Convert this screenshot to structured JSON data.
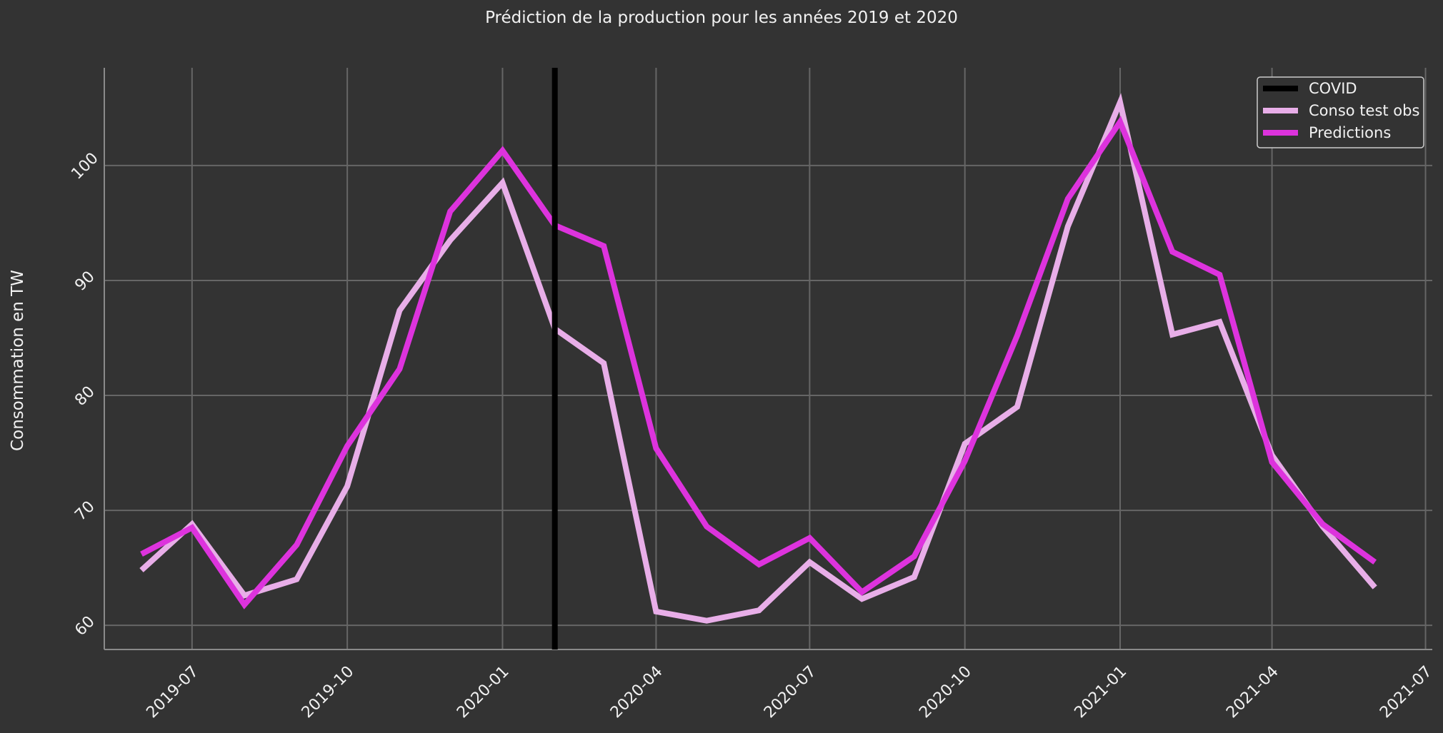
{
  "chart_data": {
    "type": "line",
    "title": "Prédiction de la production pour les années 2019 et 2020",
    "xlabel": "",
    "ylabel": "Consommation en TW",
    "x_tick_labels": [
      "2019-07",
      "2019-10",
      "2020-01",
      "2020-04",
      "2020-07",
      "2020-10",
      "2021-01",
      "2021-04",
      "2021-07"
    ],
    "y_ticks": [
      60,
      70,
      80,
      90,
      100
    ],
    "ylim": [
      57.9,
      108.5
    ],
    "xlim": [
      "2019-05-10",
      "2021-07-05"
    ],
    "grid": true,
    "legend_position": "top-right",
    "x": [
      "2019-06-01",
      "2019-07-01",
      "2019-08-01",
      "2019-09-01",
      "2019-10-01",
      "2019-11-01",
      "2019-12-01",
      "2020-01-01",
      "2020-02-01",
      "2020-03-01",
      "2020-04-01",
      "2020-05-01",
      "2020-06-01",
      "2020-07-01",
      "2020-08-01",
      "2020-09-01",
      "2020-10-01",
      "2020-11-01",
      "2020-12-01",
      "2021-01-01",
      "2021-02-01",
      "2021-03-01",
      "2021-04-01",
      "2021-05-01",
      "2021-06-01"
    ],
    "vline": {
      "name": "COVID",
      "x": "2020-02-01",
      "color": "#000000"
    },
    "series": [
      {
        "name": "Conso test obs",
        "color": "#e8aee8",
        "values": [
          64.8,
          68.8,
          62.6,
          64.0,
          72.1,
          87.4,
          93.5,
          98.5,
          85.8,
          82.8,
          61.2,
          60.4,
          61.3,
          65.5,
          62.3,
          64.2,
          75.8,
          79.0,
          94.7,
          105.5,
          85.3,
          86.4,
          74.8,
          68.6,
          63.3
        ]
      },
      {
        "name": "Predictions",
        "color": "#dd33dd",
        "values": [
          66.2,
          68.5,
          61.8,
          67.0,
          75.6,
          82.3,
          96.0,
          101.3,
          94.8,
          93.0,
          75.4,
          68.6,
          65.3,
          67.6,
          62.9,
          66.0,
          74.3,
          85.2,
          97.1,
          103.8,
          92.5,
          90.5,
          74.2,
          68.8,
          65.5
        ]
      }
    ]
  }
}
